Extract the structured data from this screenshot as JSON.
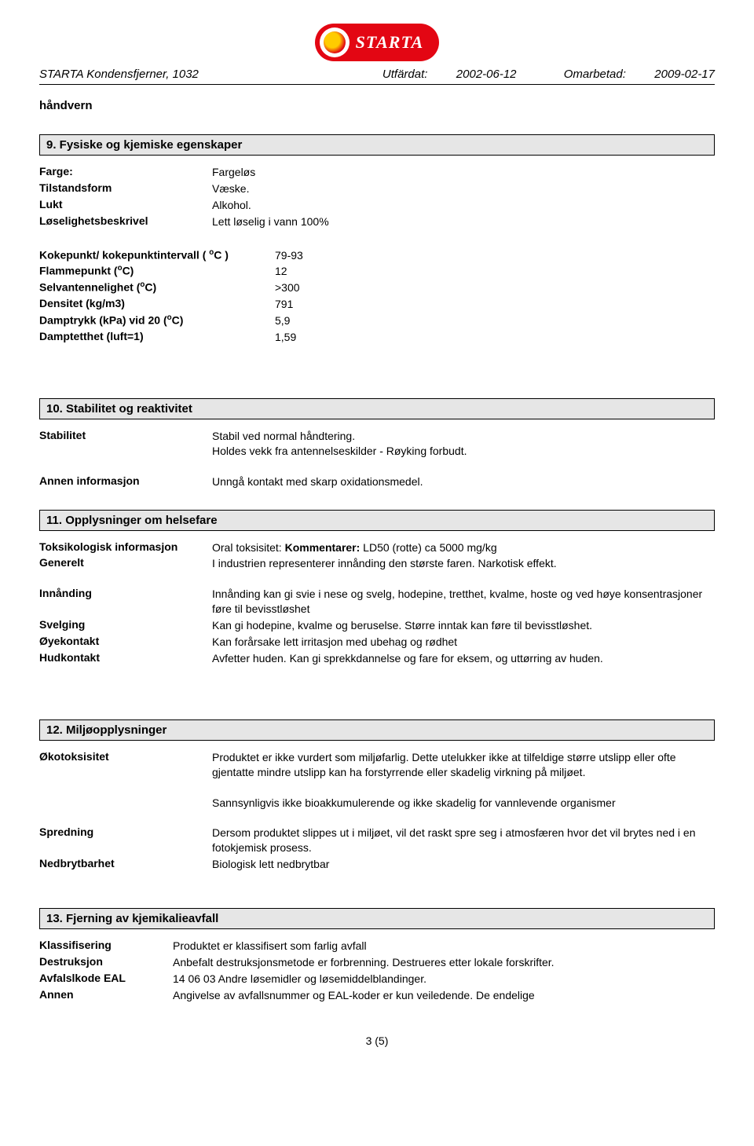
{
  "brand": {
    "name": "STARTA"
  },
  "header": {
    "product": "STARTA Kondensfjerner, 1032",
    "issued_label": "Utfärdat:",
    "issued_date": "2002-06-12",
    "revised_label": "Omarbetad:",
    "revised_date": "2009-02-17"
  },
  "pretext": "håndvern",
  "section9": {
    "title": "9. Fysiske og kjemiske egenskaper",
    "rows1": [
      {
        "k": "Farge:",
        "v": "Fargeløs"
      },
      {
        "k": "Tilstandsform",
        "v": "Væske."
      },
      {
        "k": "Lukt",
        "v": "Alkohol."
      },
      {
        "k": "Løselighetsbeskrivel",
        "v": "Lett løselig i vann 100%"
      }
    ],
    "rows2": [
      {
        "k_html": "Kokepunkt/ kokepunktintervall ( <sup>o</sup>C )",
        "v": "79-93"
      },
      {
        "k_html": "Flammepunkt (<sup>o</sup>C)",
        "v": "12"
      },
      {
        "k_html": "Selvantennelighet (<sup>o</sup>C)",
        "v": ">300"
      },
      {
        "k_html": "Densitet (kg/m3)",
        "v": "791"
      },
      {
        "k_html": "Damptrykk (kPa) vid 20 (<sup>o</sup>C)",
        "v": "5,9"
      },
      {
        "k_html": "Damptetthet (luft=1)",
        "v": "1,59"
      }
    ]
  },
  "section10": {
    "title": "10. Stabilitet og reaktivitet",
    "rows": [
      {
        "k": "Stabilitet",
        "v": "Stabil ved normal håndtering.\nHoldes vekk fra antennelseskilder - Røyking forbudt."
      },
      {
        "k": "Annen informasjon",
        "v": "Unngå kontakt med skarp oxidationsmedel."
      }
    ]
  },
  "section11": {
    "title": "11. Opplysninger om helsefare",
    "rows": [
      {
        "k": "Toksikologisk informasjon",
        "v_html": "Oral toksisitet:  <b>Kommentarer:</b> LD50 (rotte) ca 5000 mg/kg"
      },
      {
        "k": "Generelt",
        "v": "I industrien representerer innånding den største faren. Narkotisk effekt."
      },
      {
        "k": "Innånding",
        "v": "Innånding kan gi svie i nese og svelg, hodepine, tretthet, kvalme, hoste og ved høye konsentrasjoner føre til bevisstløshet"
      },
      {
        "k": "Svelging",
        "v": "Kan gi hodepine, kvalme og beruselse. Større inntak kan føre til bevisstløshet."
      },
      {
        "k": "Øyekontakt",
        "v": "Kan forårsake lett irritasjon med ubehag og rødhet"
      },
      {
        "k": "Hudkontakt",
        "v": "Avfetter huden. Kan gi sprekkdannelse og fare for eksem, og uttørring av huden."
      }
    ]
  },
  "section12": {
    "title": "12. Miljøopplysninger",
    "rows": [
      {
        "k": "Økotoksisitet",
        "v": "Produktet er ikke vurdert som miljøfarlig. Dette utelukker ikke at tilfeldige større utslipp eller ofte gjentatte mindre utslipp kan ha forstyrrende eller skadelig virkning på miljøet."
      },
      {
        "k": "",
        "v": "Sannsynligvis ikke bioakkumulerende og ikke skadelig for vannlevende organismer"
      },
      {
        "k": "Spredning",
        "v": "Dersom produktet slippes ut i miljøet, vil det raskt spre seg i atmosfæren hvor det vil brytes ned i en fotokjemisk prosess."
      },
      {
        "k": "Nedbrytbarhet",
        "v": "Biologisk lett nedbrytbar"
      }
    ]
  },
  "section13": {
    "title": "13. Fjerning av kjemikalieavfall",
    "rows": [
      {
        "k": "Klassifisering",
        "v": "Produktet er klassifisert som farlig avfall"
      },
      {
        "k": "Destruksjon",
        "v": "Anbefalt destruksjonsmetode er forbrenning. Destrueres etter lokale forskrifter."
      },
      {
        "k": "Avfalslkode EAL",
        "v": "14 06 03  Andre løsemidler og løsemiddelblandinger."
      },
      {
        "k": "Annen",
        "v": "Angivelse av avfallsnummer og EAL-koder er kun veiledende. De endelige"
      }
    ]
  },
  "footer": {
    "page": "3 (5)"
  }
}
